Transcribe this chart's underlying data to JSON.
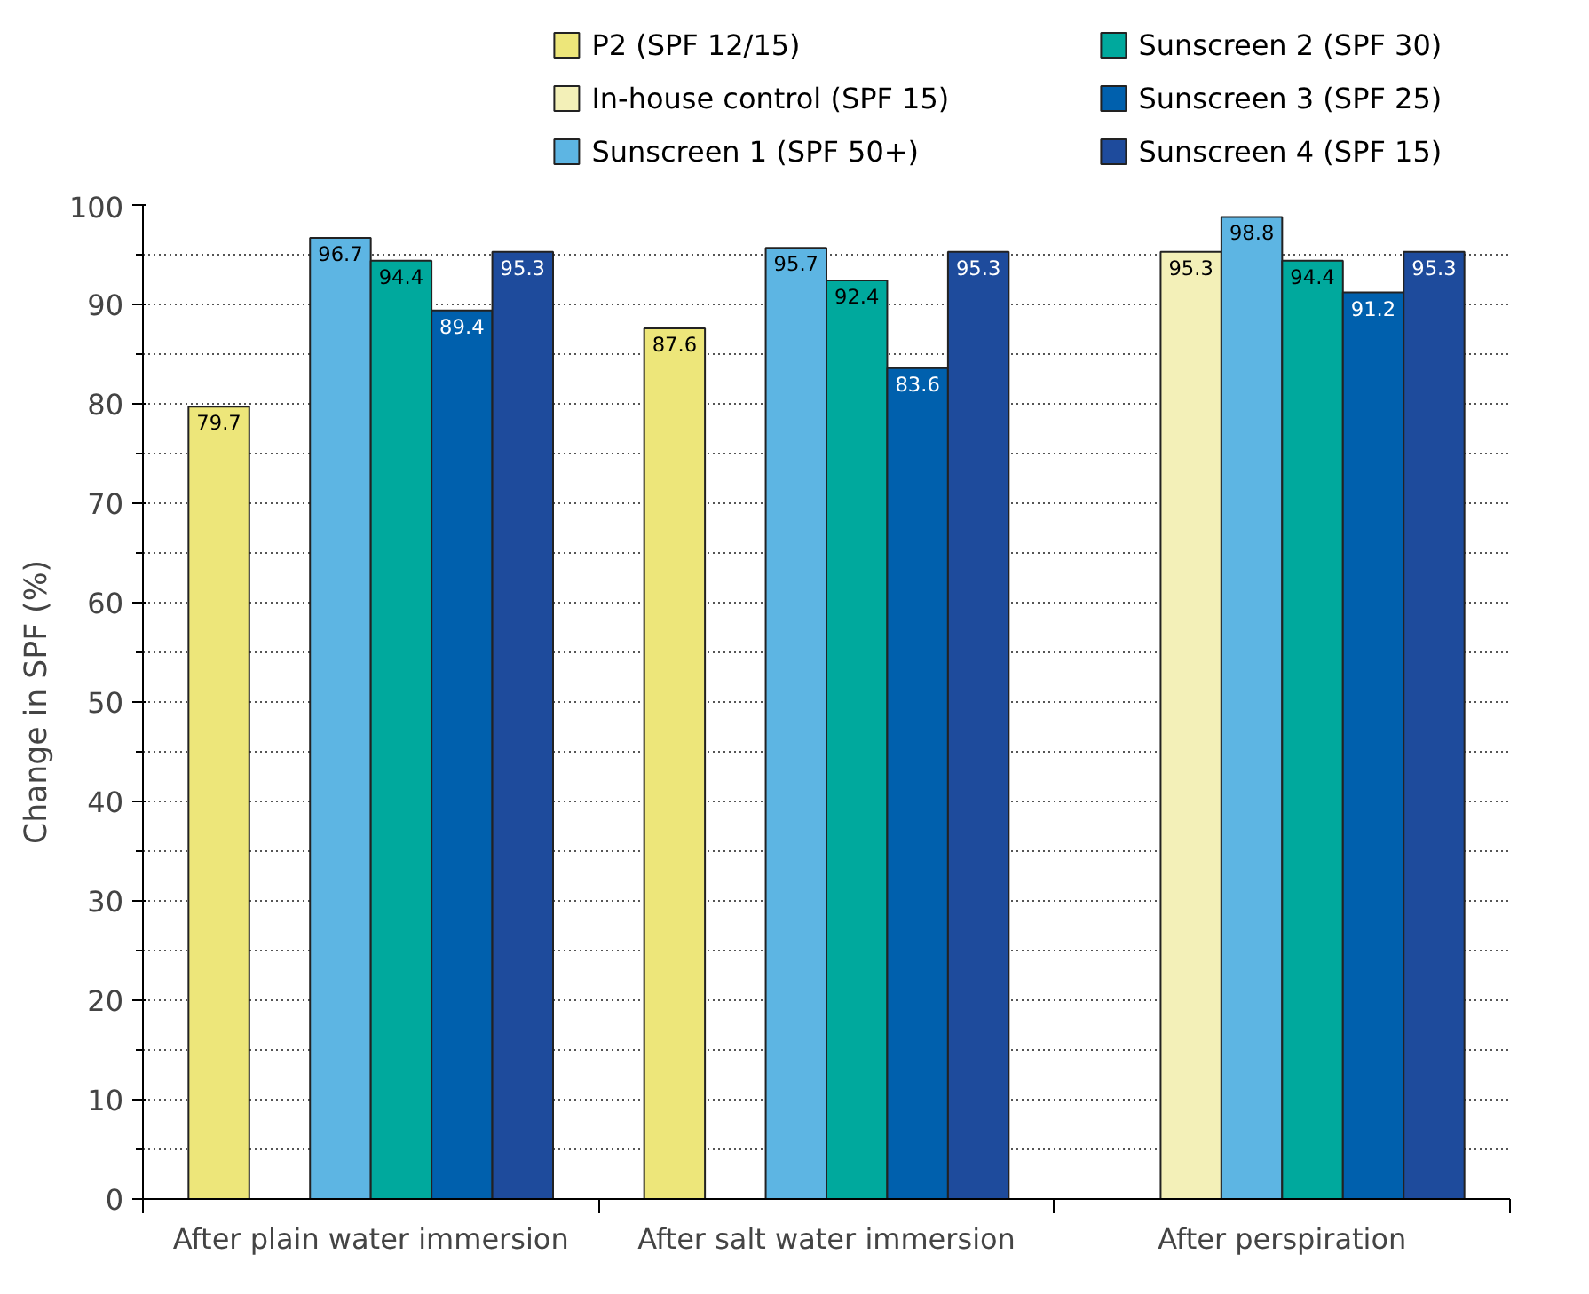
{
  "chart_data": {
    "type": "bar",
    "ylabel": "Change in SPF (%)",
    "categories": [
      "After plain water immersion",
      "After salt water immersion",
      "After perspiration"
    ],
    "series": [
      {
        "name": "P2 (SPF 12/15)",
        "color": "#ede67a",
        "values": [
          79.7,
          87.6,
          null
        ]
      },
      {
        "name": "In-house control (SPF 15)",
        "color": "#f3f0b8",
        "values": [
          null,
          null,
          95.3
        ]
      },
      {
        "name": "Sunscreen 1 (SPF 50+)",
        "color": "#5db5e3",
        "values": [
          96.7,
          95.7,
          98.8
        ]
      },
      {
        "name": "Sunscreen 2 (SPF 30)",
        "color": "#00a99d",
        "values": [
          94.4,
          92.4,
          94.4
        ]
      },
      {
        "name": "Sunscreen 3 (SPF 25)",
        "color": "#0060ad",
        "values": [
          89.4,
          83.6,
          91.2
        ]
      },
      {
        "name": "Sunscreen 4 (SPF 15)",
        "color": "#1e4b9c",
        "values": [
          95.3,
          95.3,
          95.3
        ]
      }
    ],
    "ylim": [
      0,
      100
    ],
    "yticks": [
      0,
      10,
      20,
      30,
      40,
      50,
      60,
      70,
      80,
      90,
      100
    ],
    "grid": "y",
    "legend": "top",
    "data_labels": true
  }
}
